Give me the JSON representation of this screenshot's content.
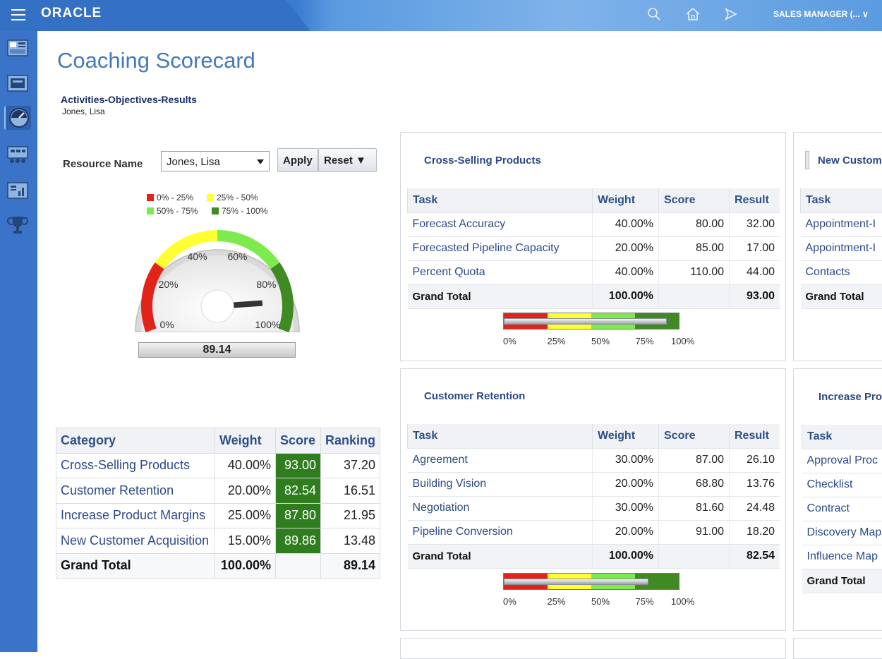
{
  "header": {
    "logo": "ORACLE",
    "user_menu": "SALES MANAGER (... ∨"
  },
  "page": {
    "title": "Coaching Scorecard",
    "subtitle": "Activities-Objectives-Results",
    "subject_name": "Jones, Lisa"
  },
  "prompt": {
    "resource_label": "Resource Name",
    "resource_value": "Jones, Lisa",
    "apply_label": "Apply",
    "reset_label": "Reset ▼"
  },
  "gauge": {
    "value": 89.14,
    "value_label": "89.14",
    "legend": [
      "0% - 25%",
      "25% - 50%",
      "50% - 75%",
      "75% - 100%"
    ],
    "legend_colors": [
      "#e2231a",
      "#ffff33",
      "#7dea4d",
      "#3f8a22"
    ],
    "ticks": [
      "0%",
      "20%",
      "40%",
      "60%",
      "80%",
      "100%"
    ]
  },
  "category_table": {
    "headers": [
      "Category",
      "Weight",
      "Score",
      "Ranking"
    ],
    "rows": [
      [
        "Cross-Selling Products",
        "40.00%",
        "93.00",
        "37.20"
      ],
      [
        "Customer Retention",
        "20.00%",
        "82.54",
        "16.51"
      ],
      [
        "Increase Product Margins",
        "25.00%",
        "87.80",
        "21.95"
      ],
      [
        "New Customer Acquisition",
        "15.00%",
        "89.86",
        "13.48"
      ]
    ],
    "grand_total": [
      "Grand Total",
      "100.00%",
      "",
      "89.14"
    ]
  },
  "panels": {
    "cross_selling": {
      "title": "Cross-Selling Products",
      "headers": [
        "Task",
        "Weight",
        "Score",
        "Result"
      ],
      "rows": [
        [
          "Forecast Accuracy",
          "40.00%",
          "80.00",
          "32.00"
        ],
        [
          "Forecasted Pipeline Capacity",
          "20.00%",
          "85.00",
          "17.00"
        ],
        [
          "Percent Quota",
          "40.00%",
          "110.00",
          "44.00"
        ]
      ],
      "grand_total": [
        "Grand Total",
        "100.00%",
        "",
        "93.00"
      ],
      "bullet_value": 0.93,
      "bullet_ticks": [
        "0%",
        "25%",
        "50%",
        "75%",
        "100%"
      ]
    },
    "customer_retention": {
      "title": "Customer Retention",
      "headers": [
        "Task",
        "Weight",
        "Score",
        "Result"
      ],
      "rows": [
        [
          "Agreement",
          "30.00%",
          "87.00",
          "26.10"
        ],
        [
          "Building Vision",
          "20.00%",
          "68.80",
          "13.76"
        ],
        [
          "Negotiation",
          "30.00%",
          "81.60",
          "24.48"
        ],
        [
          "Pipeline Conversion",
          "20.00%",
          "91.00",
          "18.20"
        ]
      ],
      "grand_total": [
        "Grand Total",
        "100.00%",
        "",
        "82.54"
      ],
      "bullet_value": 0.8254,
      "bullet_ticks": [
        "0%",
        "25%",
        "50%",
        "75%",
        "100%"
      ]
    },
    "new_customer": {
      "title": "New Custom",
      "headers": [
        "Task"
      ],
      "rows": [
        [
          "Appointment-I"
        ],
        [
          "Appointment-I"
        ],
        [
          "Contacts"
        ]
      ],
      "grand_total": [
        "Grand Total"
      ]
    },
    "increase_product": {
      "title": "Increase Pro",
      "headers": [
        "Task"
      ],
      "rows": [
        [
          "Approval Proc"
        ],
        [
          "Checklist"
        ],
        [
          "Contract"
        ],
        [
          "Discovery Map"
        ],
        [
          "Influence Map"
        ]
      ],
      "grand_total": [
        "Grand Total"
      ]
    }
  }
}
